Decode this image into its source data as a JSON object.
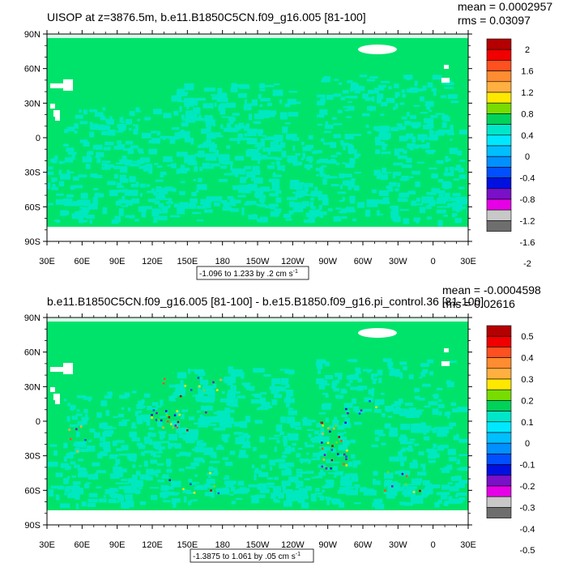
{
  "chart_data": [
    {
      "type": "heatmap",
      "title": "UISOP at z=3876.5m, b.e11.B1850C5CN.f09_g16.005 [81-100]",
      "mean_text": "mean = 0.0002957",
      "rms_text": "rms = 0.03097",
      "range_text": "-1.096 to 1.233 by .2 cm s",
      "range_sup": "-1",
      "lat_ticks": [
        "90N",
        "60N",
        "30N",
        "0",
        "30S",
        "60S",
        "90S"
      ],
      "lon_ticks": [
        "30E",
        "60E",
        "90E",
        "120E",
        "150E",
        "180",
        "150W",
        "120W",
        "90W",
        "60W",
        "30W",
        "0",
        "30E"
      ],
      "colorbar_labels": [
        "2",
        "1.6",
        "1.2",
        "0.8",
        "0.4",
        "0",
        "-0.4",
        "-0.8",
        "-1.2",
        "-1.6",
        "-2"
      ],
      "colorbar_colors": [
        "#b40000",
        "#f00000",
        "#ff5020",
        "#ff8c30",
        "#ffb040",
        "#ffe800",
        "#78dc00",
        "#00d25a",
        "#00e6c8",
        "#00e8ff",
        "#00bfff",
        "#0090ff",
        "#0050ff",
        "#0010e0",
        "#7a10c8",
        "#e600e6",
        "#c8c8c8",
        "#6e6e6e"
      ],
      "xlim": [
        "30E",
        "30E"
      ],
      "ylim": [
        "90S",
        "90N"
      ]
    },
    {
      "type": "heatmap",
      "title": "b.e11.B1850C5CN.f09_g16.005 [81-100] - b.e15.B1850.f09_g16.pi_control.36 [81-100]",
      "mean_text": "mean = -0.0004598",
      "rms_text": "rms = 0.02616",
      "range_text": "-1.3875 to 1.061 by .05 cm s",
      "range_sup": "-1",
      "lat_ticks": [
        "90N",
        "60N",
        "30N",
        "0",
        "30S",
        "60S",
        "90S"
      ],
      "lon_ticks": [
        "30E",
        "60E",
        "90E",
        "120E",
        "150E",
        "180",
        "150W",
        "120W",
        "90W",
        "60W",
        "30W",
        "0",
        "30E"
      ],
      "colorbar_labels": [
        "0.5",
        "0.4",
        "0.3",
        "0.2",
        "0.1",
        "0",
        "-0.1",
        "-0.2",
        "-0.3",
        "-0.4",
        "-0.5"
      ],
      "colorbar_colors": [
        "#b40000",
        "#f00000",
        "#ff5020",
        "#ff8c30",
        "#ffb040",
        "#ffe800",
        "#78dc00",
        "#00d25a",
        "#00e6c8",
        "#00e8ff",
        "#00bfff",
        "#0090ff",
        "#0050ff",
        "#0010e0",
        "#7a10c8",
        "#e600e6",
        "#c8c8c8",
        "#6e6e6e"
      ],
      "xlim": [
        "30E",
        "30E"
      ],
      "ylim": [
        "90S",
        "90N"
      ]
    }
  ],
  "colors": {
    "ocean_base": "#00e36b",
    "ocean_light": "#00e8c0",
    "land_mask": "#ffffff",
    "axis": "#000000"
  }
}
